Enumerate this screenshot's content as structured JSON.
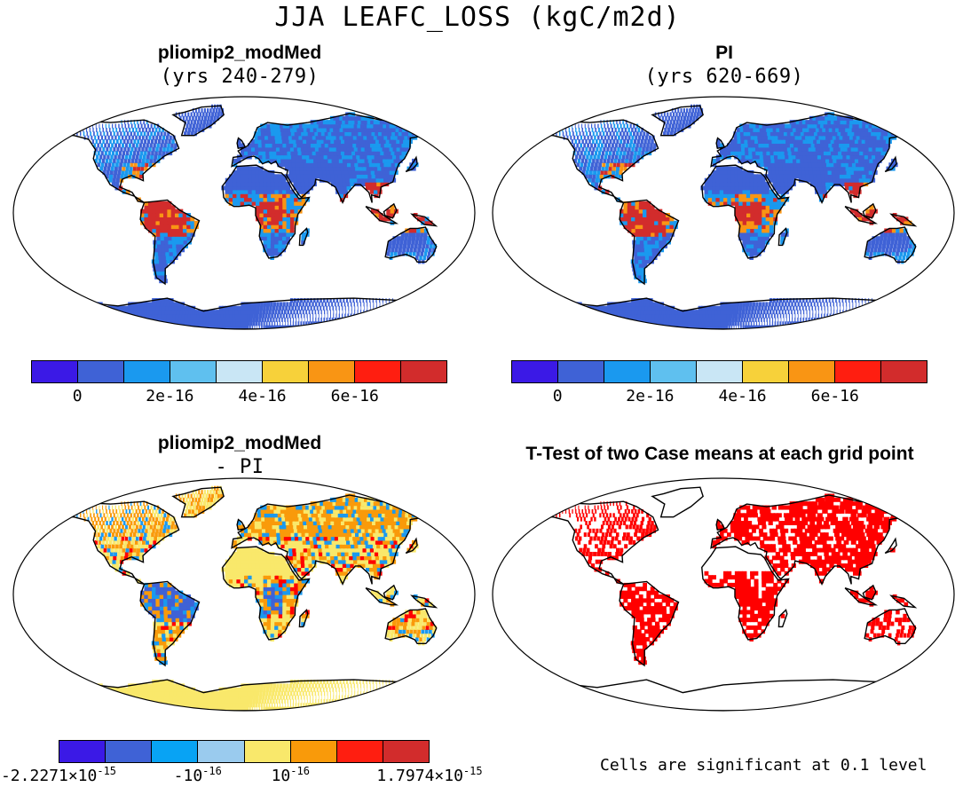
{
  "title": "JJA LEAFC_LOSS (kgC/m2d)",
  "panels": [
    {
      "title": "pliomip2_modMed",
      "subtitle": "(yrs 240-279)"
    },
    {
      "title": "PI",
      "subtitle": "(yrs 620-669)"
    },
    {
      "title": "pliomip2_modMed",
      "subtitle": "- PI"
    },
    {
      "title": "T-Test of two Case means at each grid point",
      "subtitle": ""
    }
  ],
  "colorbars": {
    "abs": {
      "colors": [
        "#3b19e6",
        "#3f62d6",
        "#1a99ef",
        "#5fc0ef",
        "#c9e6f5",
        "#f7d13a",
        "#f99514",
        "#ff1e10",
        "#d22c2c"
      ],
      "ticks": [
        "0",
        "2e-16",
        "4e-16",
        "6e-16"
      ]
    },
    "diff": {
      "colors": [
        "#3b19e6",
        "#3f62d6",
        "#08a3f4",
        "#9acbee",
        "#f9e86b",
        "#f99a0a",
        "#ff1e10",
        "#d22c2c"
      ],
      "ticks": [
        {
          "base": "-2.2271×10",
          "exp": "-15"
        },
        {
          "base": "-10",
          "exp": "-16"
        },
        {
          "base": "10",
          "exp": "-16"
        },
        {
          "base": "1.7974×10",
          "exp": "-15"
        }
      ]
    }
  },
  "footnote": "Cells are significant at 0.1 level",
  "map_colors": {
    "abs_low": "#3f62d6",
    "abs_mid": "#1a99ef",
    "abs_high": "#d22c2c",
    "abs_warm": "#f99514",
    "diff_pos": "#f9e86b",
    "diff_orange": "#f99a0a",
    "diff_neg": "#3f62d6",
    "sig": "#ff0000"
  }
}
